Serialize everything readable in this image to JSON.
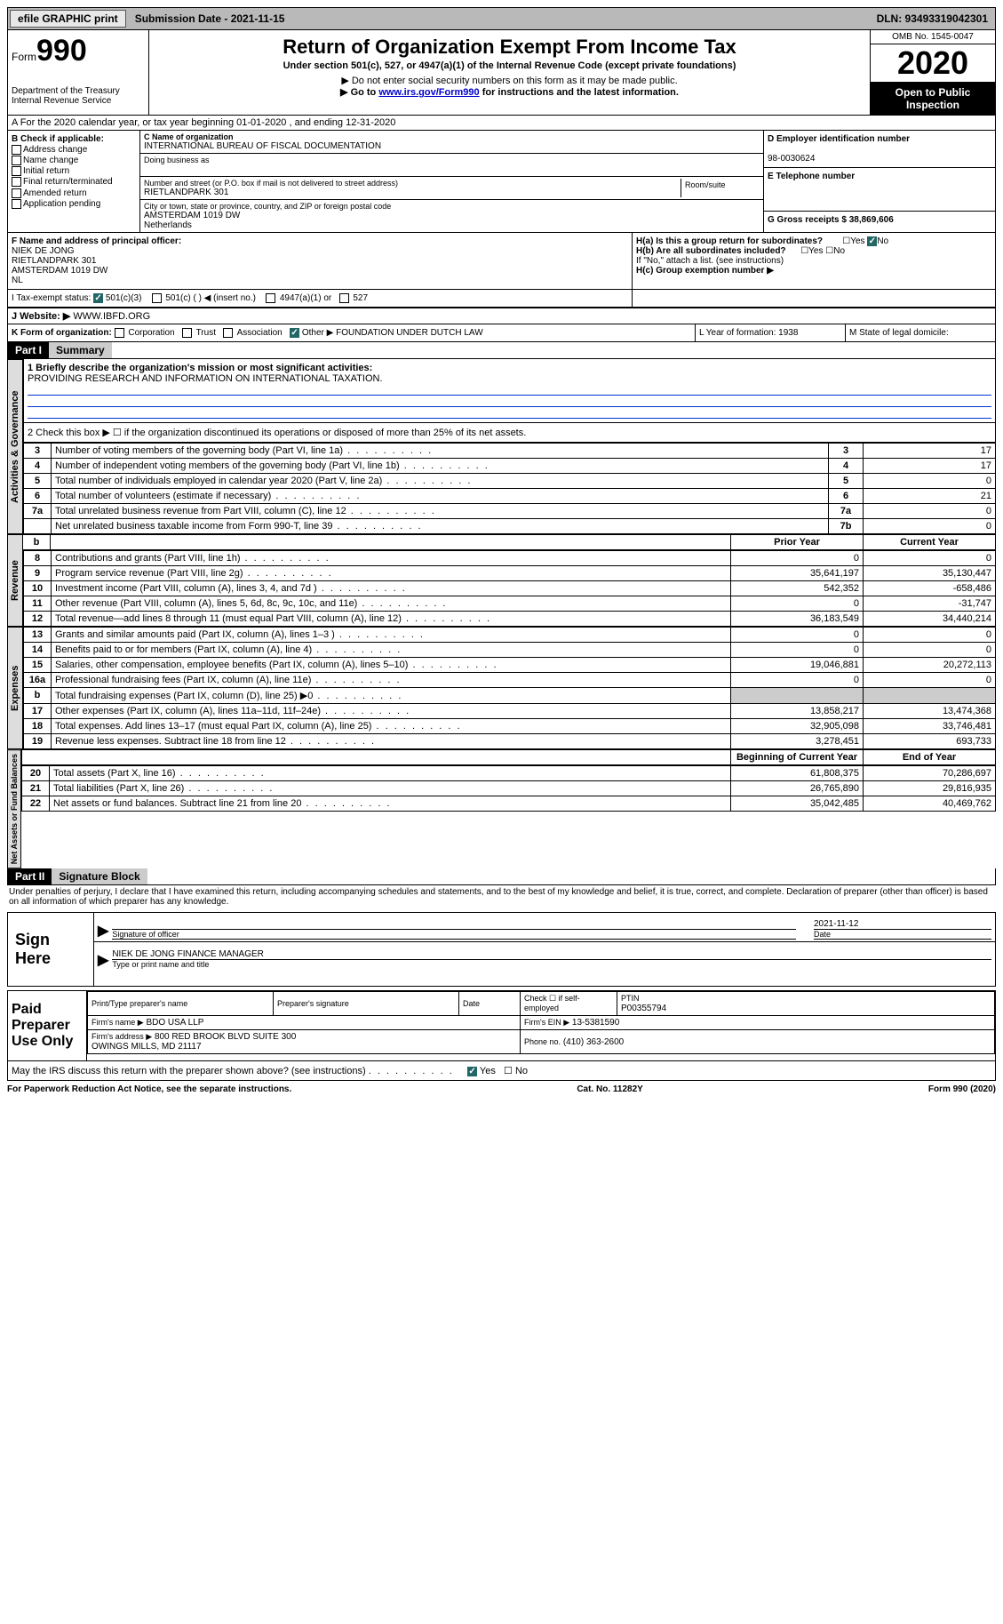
{
  "topbar": {
    "efile": "efile GRAPHIC print",
    "submission": "Submission Date - 2021-11-15",
    "dln": "DLN: 93493319042301"
  },
  "header": {
    "form_prefix": "Form",
    "form_num": "990",
    "dept": "Department of the Treasury\nInternal Revenue Service",
    "title": "Return of Organization Exempt From Income Tax",
    "subtitle": "Under section 501(c), 527, or 4947(a)(1) of the Internal Revenue Code (except private foundations)",
    "note1": "▶ Do not enter social security numbers on this form as it may be made public.",
    "note2_pre": "▶ Go to ",
    "note2_link": "www.irs.gov/Form990",
    "note2_post": " for instructions and the latest information.",
    "omb": "OMB No. 1545-0047",
    "year": "2020",
    "inspection": "Open to Public Inspection"
  },
  "rowA": "A For the 2020 calendar year, or tax year beginning 01-01-2020    , and ending 12-31-2020",
  "colB": {
    "label": "B Check if applicable:",
    "items": [
      "Address change",
      "Name change",
      "Initial return",
      "Final return/terminated",
      "Amended return",
      "Application pending"
    ]
  },
  "colC": {
    "name_label": "C Name of organization",
    "name": "INTERNATIONAL BUREAU OF FISCAL DOCUMENTATION",
    "dba_label": "Doing business as",
    "addr_label": "Number and street (or P.O. box if mail is not delivered to street address)",
    "room_label": "Room/suite",
    "addr": "RIETLANDPARK 301",
    "city_label": "City or town, state or province, country, and ZIP or foreign postal code",
    "city": "AMSTERDAM   1019 DW\nNetherlands",
    "f_label": "F Name and address of principal officer:",
    "f_val": "NIEK DE JONG\nRIETLANDPARK 301\nAMSTERDAM    1019 DW\nNL"
  },
  "colD": {
    "ein_label": "D Employer identification number",
    "ein": "98-0030624",
    "phone_label": "E Telephone number",
    "gross_label": "G Gross receipts $ 38,869,606"
  },
  "rowH": {
    "ha": "H(a)  Is this a group return for subordinates?",
    "hb": "H(b)  Are all subordinates included?",
    "hb_note": "If \"No,\" attach a list. (see instructions)",
    "hc": "H(c)  Group exemption number ▶"
  },
  "rowI": {
    "label": "I    Tax-exempt status:",
    "opts": [
      "501(c)(3)",
      "501(c) (   ) ◀ (insert no.)",
      "4947(a)(1) or",
      "527"
    ]
  },
  "rowJ": {
    "label": "J    Website: ▶",
    "val": "WWW.IBFD.ORG"
  },
  "rowK": {
    "label": "K Form of organization:",
    "opts": [
      "Corporation",
      "Trust",
      "Association",
      "Other ▶"
    ],
    "other": "FOUNDATION UNDER DUTCH LAW",
    "L": "L Year of formation: 1938",
    "M": "M State of legal domicile:"
  },
  "part1": {
    "num": "Part I",
    "title": "Summary"
  },
  "summary": {
    "line1_label": "1   Briefly describe the organization's mission or most significant activities:",
    "line1_val": "PROVIDING RESEARCH AND INFORMATION ON INTERNATIONAL TAXATION.",
    "line2": "2   Check this box ▶ ☐  if the organization discontinued its operations or disposed of more than 25% of its net assets.",
    "gov_label": "Activities & Governance",
    "rev_label": "Revenue",
    "exp_label": "Expenses",
    "net_label": "Net Assets or Fund Balances",
    "prior_hdr": "Prior Year",
    "curr_hdr": "Current Year",
    "begin_hdr": "Beginning of Current Year",
    "end_hdr": "End of Year",
    "rows_gov": [
      {
        "n": "3",
        "t": "Number of voting members of the governing body (Part VI, line 1a)",
        "r": "3",
        "v": "17"
      },
      {
        "n": "4",
        "t": "Number of independent voting members of the governing body (Part VI, line 1b)",
        "r": "4",
        "v": "17"
      },
      {
        "n": "5",
        "t": "Total number of individuals employed in calendar year 2020 (Part V, line 2a)",
        "r": "5",
        "v": "0"
      },
      {
        "n": "6",
        "t": "Total number of volunteers (estimate if necessary)",
        "r": "6",
        "v": "21"
      },
      {
        "n": "7a",
        "t": "Total unrelated business revenue from Part VIII, column (C), line 12",
        "r": "7a",
        "v": "0"
      },
      {
        "n": "",
        "t": "Net unrelated business taxable income from Form 990-T, line 39",
        "r": "7b",
        "v": "0"
      }
    ],
    "rows_rev": [
      {
        "n": "8",
        "t": "Contributions and grants (Part VIII, line 1h)",
        "p": "0",
        "c": "0"
      },
      {
        "n": "9",
        "t": "Program service revenue (Part VIII, line 2g)",
        "p": "35,641,197",
        "c": "35,130,447"
      },
      {
        "n": "10",
        "t": "Investment income (Part VIII, column (A), lines 3, 4, and 7d )",
        "p": "542,352",
        "c": "-658,486"
      },
      {
        "n": "11",
        "t": "Other revenue (Part VIII, column (A), lines 5, 6d, 8c, 9c, 10c, and 11e)",
        "p": "0",
        "c": "-31,747"
      },
      {
        "n": "12",
        "t": "Total revenue—add lines 8 through 11 (must equal Part VIII, column (A), line 12)",
        "p": "36,183,549",
        "c": "34,440,214"
      }
    ],
    "rows_exp": [
      {
        "n": "13",
        "t": "Grants and similar amounts paid (Part IX, column (A), lines 1–3 )",
        "p": "0",
        "c": "0"
      },
      {
        "n": "14",
        "t": "Benefits paid to or for members (Part IX, column (A), line 4)",
        "p": "0",
        "c": "0"
      },
      {
        "n": "15",
        "t": "Salaries, other compensation, employee benefits (Part IX, column (A), lines 5–10)",
        "p": "19,046,881",
        "c": "20,272,113"
      },
      {
        "n": "16a",
        "t": "Professional fundraising fees (Part IX, column (A), line 11e)",
        "p": "0",
        "c": "0"
      },
      {
        "n": "b",
        "t": "Total fundraising expenses (Part IX, column (D), line 25) ▶0",
        "p": "grey",
        "c": "grey"
      },
      {
        "n": "17",
        "t": "Other expenses (Part IX, column (A), lines 11a–11d, 11f–24e)",
        "p": "13,858,217",
        "c": "13,474,368"
      },
      {
        "n": "18",
        "t": "Total expenses. Add lines 13–17 (must equal Part IX, column (A), line 25)",
        "p": "32,905,098",
        "c": "33,746,481"
      },
      {
        "n": "19",
        "t": "Revenue less expenses. Subtract line 18 from line 12",
        "p": "3,278,451",
        "c": "693,733"
      }
    ],
    "rows_net": [
      {
        "n": "20",
        "t": "Total assets (Part X, line 16)",
        "p": "61,808,375",
        "c": "70,286,697"
      },
      {
        "n": "21",
        "t": "Total liabilities (Part X, line 26)",
        "p": "26,765,890",
        "c": "29,816,935"
      },
      {
        "n": "22",
        "t": "Net assets or fund balances. Subtract line 21 from line 20",
        "p": "35,042,485",
        "c": "40,469,762"
      }
    ]
  },
  "part2": {
    "num": "Part II",
    "title": "Signature Block"
  },
  "sig": {
    "decl": "Under penalties of perjury, I declare that I have examined this return, including accompanying schedules and statements, and to the best of my knowledge and belief, it is true, correct, and complete. Declaration of preparer (other than officer) is based on all information of which preparer has any knowledge.",
    "sign_here": "Sign Here",
    "sig_officer": "Signature of officer",
    "date": "2021-11-12",
    "date_label": "Date",
    "name": "NIEK DE JONG  FINANCE MANAGER",
    "name_label": "Type or print name and title",
    "paid": "Paid Preparer Use Only",
    "prep_name_label": "Print/Type preparer's name",
    "prep_sig_label": "Preparer's signature",
    "prep_date_label": "Date",
    "check_label": "Check ☐ if self-employed",
    "ptin_label": "PTIN",
    "ptin": "P00355794",
    "firm_name_label": "Firm's name    ▶",
    "firm_name": "BDO USA LLP",
    "firm_ein_label": "Firm's EIN ▶",
    "firm_ein": "13-5381590",
    "firm_addr_label": "Firm's address ▶",
    "firm_addr": "800 RED BROOK BLVD SUITE 300\nOWINGS MILLS, MD  21117",
    "phone_label": "Phone no.",
    "phone": "(410) 363-2600",
    "discuss": "May the IRS discuss this return with the preparer shown above? (see instructions)"
  },
  "footer": {
    "left": "For Paperwork Reduction Act Notice, see the separate instructions.",
    "mid": "Cat. No. 11282Y",
    "right": "Form 990 (2020)"
  }
}
